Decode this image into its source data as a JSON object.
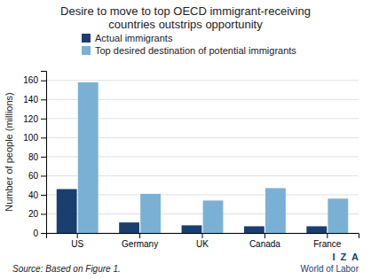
{
  "chart_data": {
    "type": "bar",
    "title": "Desire to move to top OECD immigrant-receiving\ncountries outstrips opportunity",
    "categories": [
      "US",
      "Germany",
      "UK",
      "Canada",
      "France"
    ],
    "series": [
      {
        "name": "Actual immigrants",
        "color": "#1a3f6f",
        "values": [
          46,
          11,
          8,
          7,
          7
        ]
      },
      {
        "name": "Top desired destination of potential immigrants",
        "color": "#7ab0d4",
        "values": [
          158,
          41,
          34,
          47,
          36
        ]
      }
    ],
    "ylabel": "Number of people (millions)",
    "ylim": [
      0,
      170
    ],
    "yticks": [
      0,
      20,
      40,
      60,
      80,
      100,
      120,
      140,
      160
    ],
    "grid": true,
    "legend": "upper left",
    "annotations": [
      {
        "text": "Source: Based on Figure 1."
      },
      {
        "text": "I  Z  A",
        "color": "#1a3f6f"
      },
      {
        "text": "World of Labor",
        "color": "#1a3f6f"
      }
    ]
  }
}
